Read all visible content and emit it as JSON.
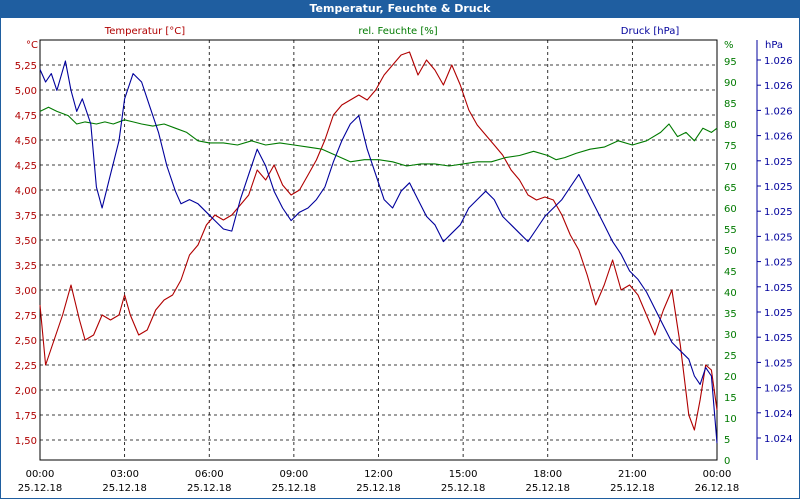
{
  "window": {
    "title": "Temperatur, Feuchte & Druck"
  },
  "chart_data": {
    "type": "line",
    "title": "Temperatur, Feuchte & Druck",
    "colors": {
      "temperature": "#b00000",
      "humidity": "#007a00",
      "pressure": "#00009c",
      "grid": "#000000",
      "titlebar": "#1f5ea0"
    },
    "x_ticks": [
      {
        "time": "00:00",
        "date": "25.12.18"
      },
      {
        "time": "03:00",
        "date": "25.12.18"
      },
      {
        "time": "06:00",
        "date": "25.12.18"
      },
      {
        "time": "09:00",
        "date": "25.12.18"
      },
      {
        "time": "12:00",
        "date": "25.12.18"
      },
      {
        "time": "15:00",
        "date": "25.12.18"
      },
      {
        "time": "18:00",
        "date": "25.12.18"
      },
      {
        "time": "21:00",
        "date": "25.12.18"
      },
      {
        "time": "00:00",
        "date": "26.12.18"
      }
    ],
    "x_range_hours": [
      0,
      24
    ],
    "axes": {
      "temperature": {
        "label": "Temperatur [°C]",
        "unit": "°C",
        "range": [
          1.3,
          5.5
        ],
        "ticks": [
          "1,50",
          "1,75",
          "2,00",
          "2,25",
          "2,50",
          "2,75",
          "3,00",
          "3,25",
          "3,50",
          "3,75",
          "4,00",
          "4,25",
          "4,50",
          "4,75",
          "5,00",
          "5,25"
        ],
        "tick_values": [
          1.5,
          1.75,
          2.0,
          2.25,
          2.5,
          2.75,
          3.0,
          3.25,
          3.5,
          3.75,
          4.0,
          4.25,
          4.5,
          4.75,
          5.0,
          5.25
        ]
      },
      "humidity": {
        "label": "rel. Feuchte [%]",
        "unit": "%",
        "range": [
          0,
          100
        ],
        "ticks": [
          "0",
          "5",
          "10",
          "15",
          "20",
          "25",
          "30",
          "35",
          "40",
          "45",
          "50",
          "55",
          "60",
          "65",
          "70",
          "75",
          "80",
          "85",
          "90",
          "95"
        ],
        "tick_values": [
          0,
          5,
          10,
          15,
          20,
          25,
          30,
          35,
          40,
          45,
          50,
          55,
          60,
          65,
          70,
          75,
          80,
          85,
          90,
          95
        ]
      },
      "pressure": {
        "label": "Druck [hPa]",
        "unit": "hPa",
        "ticks": [
          "1.026",
          "1.026",
          "1.026",
          "1.026",
          "1.025",
          "1.025",
          "1.025",
          "1.025",
          "1.025",
          "1.025",
          "1.025",
          "1.025",
          "1.025",
          "1.025",
          "1.024",
          "1.024"
        ]
      }
    },
    "series": [
      {
        "name": "Temperatur",
        "axis": "temperature",
        "color": "#b00000",
        "points": [
          [
            0,
            2.85
          ],
          [
            0.2,
            2.25
          ],
          [
            0.5,
            2.5
          ],
          [
            0.8,
            2.75
          ],
          [
            1.1,
            3.05
          ],
          [
            1.4,
            2.7
          ],
          [
            1.6,
            2.5
          ],
          [
            1.9,
            2.55
          ],
          [
            2.2,
            2.75
          ],
          [
            2.5,
            2.7
          ],
          [
            2.8,
            2.75
          ],
          [
            3.0,
            2.95
          ],
          [
            3.2,
            2.75
          ],
          [
            3.5,
            2.55
          ],
          [
            3.8,
            2.6
          ],
          [
            4.1,
            2.8
          ],
          [
            4.4,
            2.9
          ],
          [
            4.7,
            2.95
          ],
          [
            5.0,
            3.1
          ],
          [
            5.3,
            3.35
          ],
          [
            5.6,
            3.45
          ],
          [
            5.9,
            3.65
          ],
          [
            6.2,
            3.75
          ],
          [
            6.5,
            3.7
          ],
          [
            6.8,
            3.75
          ],
          [
            7.1,
            3.85
          ],
          [
            7.4,
            3.95
          ],
          [
            7.7,
            4.2
          ],
          [
            8.0,
            4.1
          ],
          [
            8.3,
            4.25
          ],
          [
            8.6,
            4.05
          ],
          [
            8.9,
            3.95
          ],
          [
            9.2,
            4.0
          ],
          [
            9.5,
            4.15
          ],
          [
            9.8,
            4.3
          ],
          [
            10.1,
            4.5
          ],
          [
            10.4,
            4.75
          ],
          [
            10.7,
            4.85
          ],
          [
            11.0,
            4.9
          ],
          [
            11.3,
            4.95
          ],
          [
            11.6,
            4.9
          ],
          [
            11.9,
            5.0
          ],
          [
            12.2,
            5.15
          ],
          [
            12.5,
            5.25
          ],
          [
            12.8,
            5.35
          ],
          [
            13.1,
            5.38
          ],
          [
            13.4,
            5.15
          ],
          [
            13.7,
            5.3
          ],
          [
            14.0,
            5.2
          ],
          [
            14.3,
            5.05
          ],
          [
            14.6,
            5.25
          ],
          [
            14.9,
            5.05
          ],
          [
            15.2,
            4.8
          ],
          [
            15.5,
            4.65
          ],
          [
            15.8,
            4.55
          ],
          [
            16.1,
            4.45
          ],
          [
            16.4,
            4.35
          ],
          [
            16.7,
            4.2
          ],
          [
            17.0,
            4.1
          ],
          [
            17.3,
            3.95
          ],
          [
            17.6,
            3.9
          ],
          [
            17.9,
            3.93
          ],
          [
            18.2,
            3.9
          ],
          [
            18.5,
            3.75
          ],
          [
            18.8,
            3.55
          ],
          [
            19.1,
            3.4
          ],
          [
            19.4,
            3.15
          ],
          [
            19.7,
            2.85
          ],
          [
            20.0,
            3.05
          ],
          [
            20.3,
            3.3
          ],
          [
            20.6,
            3.0
          ],
          [
            20.9,
            3.05
          ],
          [
            21.2,
            2.95
          ],
          [
            21.5,
            2.75
          ],
          [
            21.8,
            2.55
          ],
          [
            22.1,
            2.8
          ],
          [
            22.4,
            3.0
          ],
          [
            22.7,
            2.45
          ],
          [
            23.0,
            1.75
          ],
          [
            23.2,
            1.6
          ],
          [
            23.4,
            1.9
          ],
          [
            23.6,
            2.25
          ],
          [
            23.8,
            2.2
          ],
          [
            24.0,
            1.8
          ]
        ]
      },
      {
        "name": "rel. Feuchte",
        "axis": "humidity",
        "color": "#007a00",
        "points": [
          [
            0,
            83
          ],
          [
            0.3,
            84
          ],
          [
            0.6,
            83
          ],
          [
            1.0,
            82
          ],
          [
            1.3,
            80
          ],
          [
            1.6,
            80.5
          ],
          [
            2.0,
            80
          ],
          [
            2.3,
            80.5
          ],
          [
            2.6,
            80
          ],
          [
            3.0,
            81
          ],
          [
            3.3,
            80.5
          ],
          [
            3.6,
            80
          ],
          [
            4.0,
            79.5
          ],
          [
            4.4,
            80
          ],
          [
            4.8,
            79
          ],
          [
            5.2,
            78
          ],
          [
            5.6,
            76
          ],
          [
            6.0,
            75.5
          ],
          [
            6.5,
            75.5
          ],
          [
            7.0,
            75
          ],
          [
            7.5,
            76
          ],
          [
            8.0,
            75
          ],
          [
            8.5,
            75.5
          ],
          [
            9.0,
            75
          ],
          [
            9.5,
            74.5
          ],
          [
            10.0,
            74
          ],
          [
            10.5,
            72.5
          ],
          [
            11.0,
            71
          ],
          [
            11.5,
            71.5
          ],
          [
            12.0,
            71.5
          ],
          [
            12.5,
            71
          ],
          [
            13.0,
            70
          ],
          [
            13.5,
            70.5
          ],
          [
            14.0,
            70.5
          ],
          [
            14.5,
            70
          ],
          [
            15.0,
            70.5
          ],
          [
            15.5,
            71
          ],
          [
            16.0,
            71
          ],
          [
            16.5,
            72
          ],
          [
            17.0,
            72.5
          ],
          [
            17.5,
            73.5
          ],
          [
            18.0,
            72.5
          ],
          [
            18.3,
            71.5
          ],
          [
            18.6,
            72
          ],
          [
            19.0,
            73
          ],
          [
            19.5,
            74
          ],
          [
            20.0,
            74.5
          ],
          [
            20.5,
            76
          ],
          [
            21.0,
            75
          ],
          [
            21.5,
            76
          ],
          [
            22.0,
            78
          ],
          [
            22.3,
            80
          ],
          [
            22.6,
            77
          ],
          [
            22.9,
            78
          ],
          [
            23.2,
            76
          ],
          [
            23.5,
            79
          ],
          [
            23.8,
            78
          ],
          [
            24.0,
            79
          ]
        ]
      },
      {
        "name": "Druck",
        "axis": "pressure",
        "color": "#00009c",
        "points": [
          [
            0,
            93
          ],
          [
            0.2,
            90
          ],
          [
            0.4,
            92
          ],
          [
            0.6,
            88
          ],
          [
            0.9,
            95
          ],
          [
            1.1,
            88
          ],
          [
            1.3,
            83
          ],
          [
            1.5,
            86
          ],
          [
            1.8,
            80
          ],
          [
            2.0,
            65
          ],
          [
            2.2,
            60
          ],
          [
            2.5,
            68
          ],
          [
            2.8,
            76
          ],
          [
            3.0,
            86
          ],
          [
            3.3,
            92
          ],
          [
            3.6,
            90
          ],
          [
            3.9,
            84
          ],
          [
            4.2,
            78
          ],
          [
            4.5,
            70
          ],
          [
            4.8,
            64
          ],
          [
            5.0,
            61
          ],
          [
            5.3,
            62
          ],
          [
            5.6,
            61
          ],
          [
            5.9,
            59
          ],
          [
            6.2,
            57
          ],
          [
            6.5,
            55
          ],
          [
            6.8,
            54.5
          ],
          [
            7.1,
            62
          ],
          [
            7.4,
            68
          ],
          [
            7.7,
            74
          ],
          [
            8.0,
            70
          ],
          [
            8.3,
            64
          ],
          [
            8.6,
            60
          ],
          [
            8.9,
            57
          ],
          [
            9.2,
            59
          ],
          [
            9.5,
            60
          ],
          [
            9.8,
            62
          ],
          [
            10.1,
            65
          ],
          [
            10.4,
            71
          ],
          [
            10.7,
            76
          ],
          [
            11.0,
            80
          ],
          [
            11.3,
            82
          ],
          [
            11.6,
            74
          ],
          [
            11.9,
            68
          ],
          [
            12.2,
            62
          ],
          [
            12.5,
            60
          ],
          [
            12.8,
            64
          ],
          [
            13.1,
            66
          ],
          [
            13.4,
            62
          ],
          [
            13.7,
            58
          ],
          [
            14.0,
            56
          ],
          [
            14.3,
            52
          ],
          [
            14.6,
            54
          ],
          [
            14.9,
            56
          ],
          [
            15.2,
            60
          ],
          [
            15.5,
            62
          ],
          [
            15.8,
            64
          ],
          [
            16.1,
            62
          ],
          [
            16.4,
            58
          ],
          [
            16.7,
            56
          ],
          [
            17.0,
            54
          ],
          [
            17.3,
            52
          ],
          [
            17.6,
            55
          ],
          [
            17.9,
            58
          ],
          [
            18.2,
            60
          ],
          [
            18.5,
            62
          ],
          [
            18.8,
            65
          ],
          [
            19.1,
            68
          ],
          [
            19.4,
            64
          ],
          [
            19.7,
            60
          ],
          [
            20.0,
            56
          ],
          [
            20.3,
            52
          ],
          [
            20.6,
            49
          ],
          [
            20.9,
            45
          ],
          [
            21.2,
            43
          ],
          [
            21.5,
            40
          ],
          [
            21.8,
            36
          ],
          [
            22.1,
            32
          ],
          [
            22.4,
            28
          ],
          [
            22.7,
            26
          ],
          [
            23.0,
            24
          ],
          [
            23.2,
            20
          ],
          [
            23.4,
            18
          ],
          [
            23.6,
            22
          ],
          [
            23.8,
            20
          ],
          [
            24.0,
            4
          ]
        ]
      }
    ]
  }
}
